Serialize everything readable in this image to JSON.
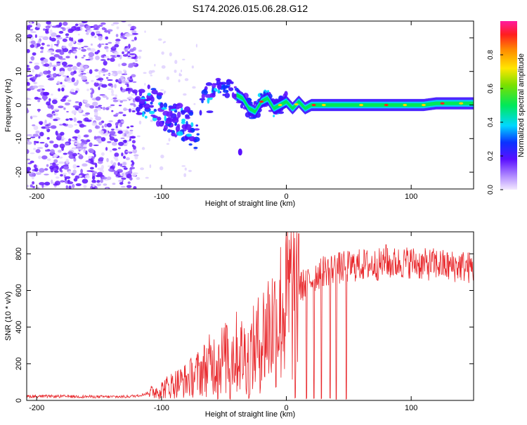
{
  "colors": {
    "snr_line": "#e8262a",
    "ridge": "#00e85a",
    "ridge_core": "#ffd400",
    "ridge_hot": "#ff2020",
    "frame": "#000000"
  },
  "chart_data": [
    {
      "type": "heatmap",
      "title": "S174.2026.015.06.28.G12",
      "xlabel": "Height of straight line (km)",
      "ylabel": "Frequency (Hz)",
      "xlim": [
        -208,
        150
      ],
      "ylim": [
        -25,
        25
      ],
      "xticks": [
        -200,
        -100,
        0,
        100
      ],
      "xtick_labels": [
        "-200",
        "-100",
        "0",
        "100"
      ],
      "yticks": [
        -20,
        -10,
        0,
        10,
        20
      ],
      "ytick_labels": [
        "-20",
        "-10",
        "0",
        "10",
        "20"
      ],
      "colorbar": {
        "label": "Normalized spectral amplitude",
        "range": [
          0,
          1
        ],
        "ticks": [
          0.0,
          0.2,
          0.4,
          0.6,
          0.8
        ],
        "tick_labels": [
          "0.0",
          "0.2",
          "0.4",
          "0.6",
          "0.8"
        ]
      },
      "ridge_frequency": {
        "x": [
          -118,
          -110,
          -100,
          -90,
          -80,
          -72,
          -65,
          -60,
          -55,
          -50,
          -45,
          -40,
          -35,
          -30,
          -25,
          -20,
          -15,
          -10,
          -5,
          0,
          5,
          10,
          15,
          20,
          30,
          40,
          50,
          60,
          70,
          80,
          90,
          100,
          110,
          120,
          130,
          140,
          150
        ],
        "y": [
          -1,
          1,
          -2,
          -4,
          -6,
          -8,
          0,
          4,
          6,
          4,
          5,
          3,
          2,
          -1,
          -2,
          1,
          2,
          -1,
          0,
          1,
          -1,
          1,
          -1,
          0,
          0,
          0,
          0,
          0,
          0,
          0,
          0,
          0,
          0,
          0.5,
          0.5,
          0.5,
          0.5
        ]
      }
    },
    {
      "type": "line",
      "title": "",
      "xlabel": "Height of straight line (km)",
      "ylabel": "SNR (10 * v/v)",
      "xlim": [
        -208,
        150
      ],
      "ylim": [
        0,
        920
      ],
      "xticks": [
        -200,
        -100,
        0,
        100
      ],
      "xtick_labels": [
        "-200",
        "-100",
        "0",
        "100"
      ],
      "yticks": [
        0,
        200,
        400,
        600,
        800
      ],
      "ytick_labels": [
        "0",
        "200",
        "400",
        "600",
        "800"
      ],
      "series": [
        {
          "name": "SNR",
          "x": [
            -208,
            -180,
            -150,
            -130,
            -120,
            -110,
            -100,
            -90,
            -80,
            -70,
            -60,
            -50,
            -40,
            -30,
            -20,
            -15,
            -10,
            -5,
            0,
            5,
            10,
            15,
            20,
            25,
            30,
            40,
            50,
            60,
            70,
            80,
            90,
            100,
            110,
            120,
            130,
            140,
            150
          ],
          "y": [
            22,
            22,
            20,
            20,
            25,
            40,
            60,
            90,
            110,
            150,
            200,
            230,
            260,
            240,
            330,
            400,
            420,
            480,
            540,
            580,
            610,
            640,
            660,
            690,
            710,
            720,
            730,
            740,
            740,
            745,
            750,
            755,
            740,
            745,
            730,
            735,
            720
          ]
        }
      ],
      "dropouts_x": [
        -55,
        -45,
        -30,
        7,
        16,
        22,
        28,
        35,
        40,
        48
      ],
      "spikes": [
        {
          "x": 10,
          "y": 910
        },
        {
          "x": -48,
          "y": 410
        },
        {
          "x": 80,
          "y": 850
        }
      ]
    }
  ]
}
